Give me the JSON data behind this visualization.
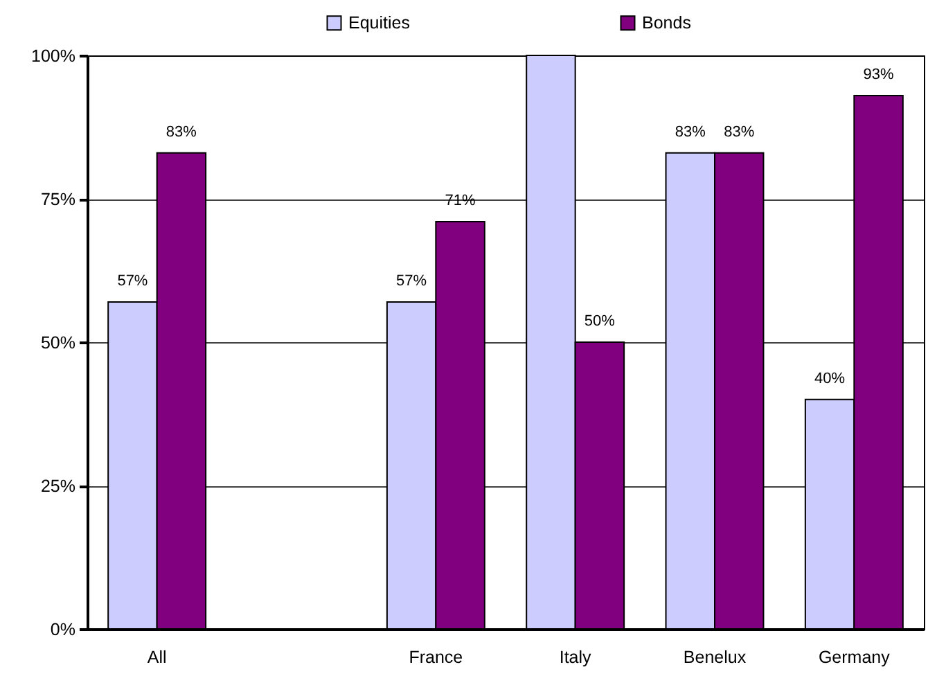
{
  "chart_data": {
    "type": "bar",
    "categories": [
      "All",
      null,
      "France",
      "Italy",
      "Benelux",
      "Germany"
    ],
    "series": [
      {
        "name": "Equities",
        "color": "#ccccff",
        "values": [
          57,
          null,
          57,
          100,
          83,
          40
        ],
        "value_labels": [
          "57%",
          null,
          "57%",
          null,
          "83%",
          "40%"
        ]
      },
      {
        "name": "Bonds",
        "color": "#800080",
        "values": [
          83,
          null,
          71,
          50,
          83,
          93
        ],
        "value_labels": [
          "83%",
          null,
          "71%",
          "50%",
          "83%",
          "93%"
        ]
      }
    ],
    "ylim": [
      0,
      100
    ],
    "yticks": [
      {
        "value": 0,
        "label": "0%"
      },
      {
        "value": 25,
        "label": "25%"
      },
      {
        "value": 50,
        "label": "50%"
      },
      {
        "value": 75,
        "label": "75%"
      },
      {
        "value": 100,
        "label": "100%"
      }
    ],
    "grid": "y",
    "legend": "top"
  }
}
